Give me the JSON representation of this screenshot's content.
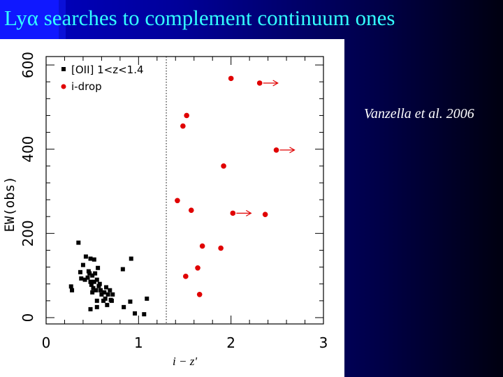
{
  "slide": {
    "title_main": "Ly",
    "title_greek": "α",
    "title_rest": " searches to complement continuum ones",
    "citation": "Vanzella et al. 2006"
  },
  "chart_data": {
    "type": "scatter",
    "xlabel": "i − z'",
    "ylabel": "EW(obs)",
    "xlim": [
      0,
      3
    ],
    "ylim": [
      -15,
      620
    ],
    "x_ticks": [
      "0",
      "1",
      "2",
      "3"
    ],
    "y_ticks": [
      "0",
      "200",
      "400",
      "600"
    ],
    "x_tick_values": [
      0,
      1,
      2,
      3
    ],
    "y_tick_values": [
      0,
      200,
      400,
      600
    ],
    "vline": 1.3,
    "grid": false,
    "legend_position": "top-left",
    "colors": {
      "oii": "#000000",
      "idrop": "#e00000",
      "axis": "#000000"
    },
    "series": [
      {
        "name": "[OII] 1<z<1.4",
        "marker": "square",
        "points": [
          [
            0.27,
            74
          ],
          [
            0.28,
            65
          ],
          [
            0.35,
            178
          ],
          [
            0.37,
            108
          ],
          [
            0.38,
            93
          ],
          [
            0.4,
            125
          ],
          [
            0.42,
            90
          ],
          [
            0.43,
            145
          ],
          [
            0.45,
            95
          ],
          [
            0.46,
            110
          ],
          [
            0.47,
            105
          ],
          [
            0.48,
            140
          ],
          [
            0.48,
            85
          ],
          [
            0.49,
            78
          ],
          [
            0.5,
            60
          ],
          [
            0.5,
            100
          ],
          [
            0.51,
            70
          ],
          [
            0.52,
            85
          ],
          [
            0.52,
            138
          ],
          [
            0.53,
            105
          ],
          [
            0.54,
            65
          ],
          [
            0.55,
            90
          ],
          [
            0.55,
            40
          ],
          [
            0.56,
            118
          ],
          [
            0.57,
            75
          ],
          [
            0.58,
            80
          ],
          [
            0.59,
            65
          ],
          [
            0.6,
            55
          ],
          [
            0.62,
            40
          ],
          [
            0.63,
            60
          ],
          [
            0.64,
            45
          ],
          [
            0.65,
            72
          ],
          [
            0.66,
            30
          ],
          [
            0.67,
            55
          ],
          [
            0.69,
            65
          ],
          [
            0.7,
            42
          ],
          [
            0.71,
            40
          ],
          [
            0.72,
            55
          ],
          [
            0.48,
            20
          ],
          [
            0.55,
            25
          ],
          [
            0.83,
            115
          ],
          [
            0.84,
            25
          ],
          [
            0.91,
            38
          ],
          [
            0.92,
            140
          ],
          [
            0.96,
            10
          ],
          [
            1.06,
            8
          ],
          [
            1.09,
            45
          ]
        ]
      },
      {
        "name": "i-drop",
        "marker": "circle",
        "points": [
          [
            1.42,
            278
          ],
          [
            1.48,
            455
          ],
          [
            1.51,
            98
          ],
          [
            1.52,
            480
          ],
          [
            1.57,
            255
          ],
          [
            1.64,
            118
          ],
          [
            1.66,
            55
          ],
          [
            1.69,
            170
          ],
          [
            1.89,
            165
          ],
          [
            1.92,
            360
          ],
          [
            2.0,
            568
          ],
          [
            2.02,
            248
          ],
          [
            2.31,
            557
          ],
          [
            2.37,
            245
          ],
          [
            2.49,
            398
          ]
        ],
        "lower_limits": [
          [
            2.02,
            248
          ],
          [
            2.31,
            557
          ],
          [
            2.49,
            398
          ]
        ]
      }
    ]
  }
}
